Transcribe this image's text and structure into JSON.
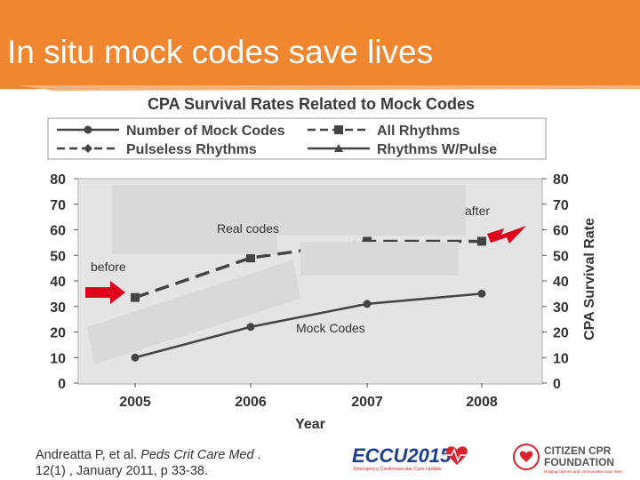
{
  "slide_title": "In situ mock codes save lives",
  "citation": {
    "authors": "Andreatta P, et al. ",
    "journal": "Peds Crit Care Med",
    "rest_line1": " .",
    "line2": "12(1) , January 2011, p 33-38."
  },
  "annotations": {
    "real_codes": "Real codes",
    "before": "before",
    "after": "after",
    "mock_codes": "Mock Codes"
  },
  "logos": {
    "ecc_text": "ECCU2015",
    "ecc_tagline": "Emergency Cardiovascular Care Update",
    "cpr_line1": "CITIZEN CPR",
    "cpr_line2": "FOUNDATION",
    "cpr_tagline": "Helping citizens and communities save lives"
  },
  "colors": {
    "header": "#f0862f",
    "chart_bg": "#e4e4e4",
    "arrow": "#e0001b",
    "series": "#444444"
  },
  "chart_data": {
    "type": "line",
    "title": "CPA Survival Rates Related to Mock Codes",
    "xlabel": "Year",
    "ylabel_right": "CPA Survival Rate",
    "categories": [
      "2005",
      "2006",
      "2007",
      "2008"
    ],
    "ylim": [
      0,
      80
    ],
    "yticks": [
      "0",
      "10",
      "20",
      "30",
      "40",
      "50",
      "60",
      "70",
      "80"
    ],
    "legend_position": "top",
    "grid": false,
    "series": [
      {
        "name": "Number of Mock Codes",
        "style": "solid-circle",
        "values": [
          10,
          22,
          31,
          35
        ]
      },
      {
        "name": "All Rhythms",
        "style": "dashed-square",
        "values": [
          33.5,
          49,
          55.5,
          55.5
        ]
      },
      {
        "name": "Pulseless Rhythms",
        "style": "dashed-diamond",
        "values": [
          null,
          null,
          null,
          null
        ]
      },
      {
        "name": "Rhythms W/Pulse",
        "style": "solid-triangle",
        "values": [
          null,
          null,
          null,
          null
        ]
      }
    ]
  }
}
